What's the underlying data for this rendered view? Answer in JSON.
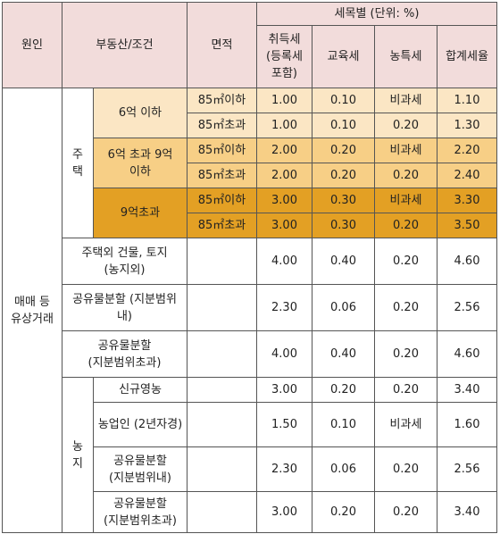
{
  "headers": {
    "cause": "원인",
    "property": "부동산/조건",
    "area": "면적",
    "rates_group": "세목별 (단위: %)",
    "acquisition": "취득세(등록세 포함)",
    "education": "교육세",
    "rural": "농특세",
    "total": "합계세율"
  },
  "cause_label": "매매 등 유상거래",
  "house_label": "주택",
  "farmland_label": "농지",
  "house_rows": [
    {
      "price": "6억 이하",
      "area": "85㎡이하",
      "acq": "1.00",
      "edu": "0.10",
      "rural": "비과세",
      "total": "1.10"
    },
    {
      "area": "85㎡초과",
      "acq": "1.00",
      "edu": "0.10",
      "rural": "0.20",
      "total": "1.30"
    },
    {
      "price": "6억 초과 9억 이하",
      "area": "85㎡이하",
      "acq": "2.00",
      "edu": "0.20",
      "rural": "비과세",
      "total": "2.20"
    },
    {
      "area": "85㎡초과",
      "acq": "2.00",
      "edu": "0.20",
      "rural": "0.20",
      "total": "2.40"
    },
    {
      "price": "9억초과",
      "area": "85㎡이하",
      "acq": "3.00",
      "edu": "0.30",
      "rural": "비과세",
      "total": "3.30"
    },
    {
      "area": "85㎡초과",
      "acq": "3.00",
      "edu": "0.30",
      "rural": "0.20",
      "total": "3.50"
    }
  ],
  "other_rows": [
    {
      "label": "주택외 건물, 토지 (농지외)",
      "acq": "4.00",
      "edu": "0.40",
      "rural": "0.20",
      "total": "4.60"
    },
    {
      "label": "공유물분할 (지분범위 내)",
      "acq": "2.30",
      "edu": "0.06",
      "rural": "0.20",
      "total": "2.56"
    },
    {
      "label": "공유물분할 (지분범위초과)",
      "acq": "4.00",
      "edu": "0.40",
      "rural": "0.20",
      "total": "4.60"
    }
  ],
  "farm_rows": [
    {
      "label": "신규영농",
      "acq": "3.00",
      "edu": "0.20",
      "rural": "0.20",
      "total": "3.40"
    },
    {
      "label": "농업인 (2년자경)",
      "acq": "1.50",
      "edu": "0.10",
      "rural": "비과세",
      "total": "1.60"
    },
    {
      "label": "공유물분할 (지분범위내)",
      "acq": "2.30",
      "edu": "0.06",
      "rural": "0.20",
      "total": "2.56"
    },
    {
      "label": "공유물분할(지분범위초과)",
      "acq": "3.00",
      "edu": "0.20",
      "rural": "0.20",
      "total": "3.40"
    }
  ],
  "colors": {
    "header_bg": "#f2dcdb",
    "tier1_bg": "#fbe6c4",
    "tier2_bg": "#f7cf86",
    "tier3_bg": "#e3a024",
    "border": "#555555"
  }
}
